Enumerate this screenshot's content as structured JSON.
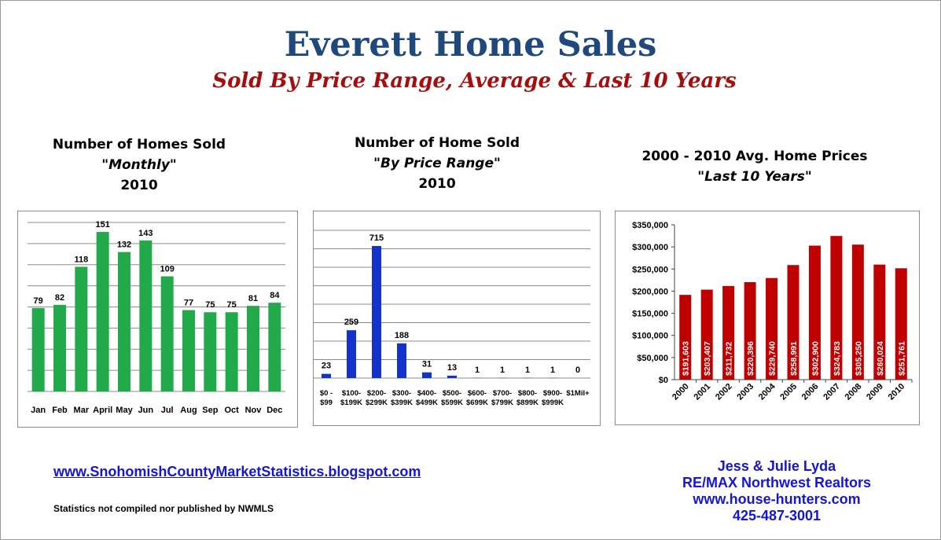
{
  "header": {
    "title": "Everett Home Sales",
    "subtitle": "Sold By Price Range, Average & Last 10 Years"
  },
  "charts": [
    {
      "line1": "Number of Homes Sold",
      "line2": "\"Monthly\"",
      "line3": "2010"
    },
    {
      "line1": "Number of Home Sold",
      "line2": "\"By Price Range\"",
      "line3": "2010"
    },
    {
      "line1": "2000 - 2010 Avg. Home Prices",
      "line2": "\"Last 10 Years\""
    }
  ],
  "footer": {
    "link": "www.SnohomishCountyMarketStatistics.blogspot.com",
    "note": "Statistics not compiled nor published by NWMLS",
    "contact": [
      "Jess & Julie Lyda",
      "RE/MAX Northwest Realtors",
      "www.house-hunters.com",
      "425-487-3001"
    ]
  },
  "colors": {
    "green": "#22a94a",
    "blue": "#1133cc",
    "red": "#c00000",
    "title_blue": "#1f497d",
    "subtitle_red": "#a50e0e",
    "link_blue": "#1515d6"
  },
  "chart_data": [
    {
      "type": "bar",
      "title": "Number of Homes Sold \"Monthly\" 2010",
      "categories": [
        "Jan",
        "Feb",
        "Mar",
        "April",
        "May",
        "Jun",
        "Jul",
        "Aug",
        "Sep",
        "Oct",
        "Nov",
        "Dec"
      ],
      "values": [
        79,
        82,
        118,
        151,
        132,
        143,
        109,
        77,
        75,
        75,
        81,
        84
      ],
      "ylim": [
        0,
        160
      ],
      "data_labels": true,
      "grid": true
    },
    {
      "type": "bar",
      "title": "Number of Home Sold \"By Price Range\" 2010",
      "categories": [
        [
          "$0 -",
          "$99"
        ],
        [
          "$100-",
          "$199K"
        ],
        [
          "$200-",
          "$299K"
        ],
        [
          "$300-",
          "$399K"
        ],
        [
          "$400-",
          "$499K"
        ],
        [
          "$500-",
          "$599K"
        ],
        [
          "$600-",
          "$699K"
        ],
        [
          "$700-",
          "$799K"
        ],
        [
          "$800-",
          "$899K"
        ],
        [
          "$900-",
          "$999K"
        ],
        [
          "$1Mil+",
          ""
        ]
      ],
      "values": [
        23,
        259,
        715,
        188,
        31,
        13,
        1,
        1,
        1,
        1,
        0
      ],
      "ylim": [
        0,
        800
      ],
      "data_labels": true,
      "grid": true
    },
    {
      "type": "bar",
      "title": "2000 - 2010 Avg. Home Prices \"Last 10 Years\"",
      "categories": [
        "2000",
        "2001",
        "2002",
        "2003",
        "2004",
        "2005",
        "2006",
        "2007",
        "2008",
        "2009",
        "2010"
      ],
      "values": [
        191603,
        203407,
        211732,
        220396,
        229740,
        258991,
        302900,
        324783,
        305250,
        260024,
        251761
      ],
      "value_labels": [
        "$191,603",
        "$203,407",
        "$211,732",
        "$220,396",
        "$229,740",
        "$258,991",
        "$302,900",
        "$324,783",
        "$305,250",
        "$260,024",
        "$251,761"
      ],
      "ylim": [
        0,
        350000
      ],
      "yticks": [
        "$0",
        "$50,000",
        "$100,000",
        "$150,000",
        "$200,000",
        "$250,000",
        "$300,000",
        "$350,000"
      ],
      "data_labels": true,
      "grid": false
    }
  ]
}
